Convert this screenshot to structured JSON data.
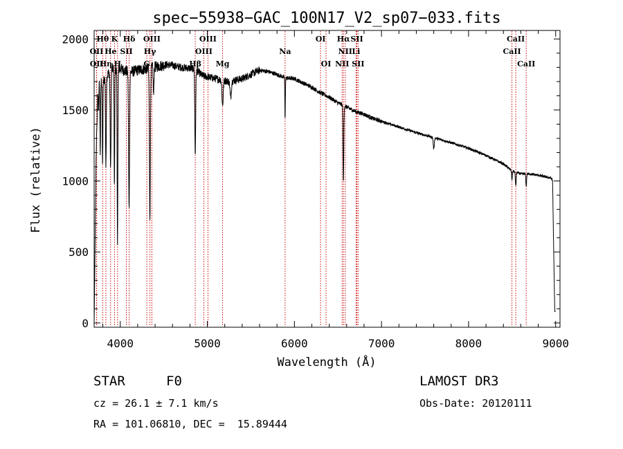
{
  "chart_data": {
    "type": "line",
    "title": "spec−55938−GAC_100N17_V2_sp07−033.fits",
    "xlabel": "Wavelength (Å)",
    "ylabel": "Flux (relative)",
    "xlim": [
      3700,
      9050
    ],
    "ylim": [
      -30,
      2060
    ],
    "xticks": [
      4000,
      5000,
      6000,
      7000,
      8000,
      9000
    ],
    "yticks": [
      0,
      500,
      1000,
      1500,
      2000
    ],
    "series": [
      {
        "name": "flux",
        "continuum": [
          [
            3700,
            0
          ],
          [
            3712,
            620
          ],
          [
            3722,
            1150
          ],
          [
            3745,
            1700
          ],
          [
            3800,
            1700
          ],
          [
            3900,
            1790
          ],
          [
            4000,
            1790
          ],
          [
            4100,
            1765
          ],
          [
            4200,
            1780
          ],
          [
            4300,
            1790
          ],
          [
            4450,
            1810
          ],
          [
            4550,
            1820
          ],
          [
            4700,
            1800
          ],
          [
            4850,
            1790
          ],
          [
            4950,
            1740
          ],
          [
            5100,
            1720
          ],
          [
            5250,
            1700
          ],
          [
            5400,
            1720
          ],
          [
            5600,
            1780
          ],
          [
            5700,
            1770
          ],
          [
            5800,
            1750
          ],
          [
            5900,
            1725
          ],
          [
            6000,
            1720
          ],
          [
            6100,
            1690
          ],
          [
            6200,
            1660
          ],
          [
            6300,
            1620
          ],
          [
            6400,
            1590
          ],
          [
            6500,
            1550
          ],
          [
            6600,
            1520
          ],
          [
            6700,
            1490
          ],
          [
            6800,
            1470
          ],
          [
            6900,
            1440
          ],
          [
            7000,
            1420
          ],
          [
            7200,
            1380
          ],
          [
            7400,
            1340
          ],
          [
            7600,
            1305
          ],
          [
            7800,
            1270
          ],
          [
            8000,
            1230
          ],
          [
            8200,
            1180
          ],
          [
            8400,
            1120
          ],
          [
            8500,
            1070
          ],
          [
            8600,
            1050
          ],
          [
            8700,
            1050
          ],
          [
            8800,
            1040
          ],
          [
            8950,
            1020
          ],
          [
            8965,
            1000
          ],
          [
            8975,
            600
          ],
          [
            8990,
            80
          ],
          [
            9000,
            80
          ]
        ],
        "absorption": [
          [
            3750,
            200,
            6
          ],
          [
            3770,
            500,
            5
          ],
          [
            3797,
            600,
            5
          ],
          [
            3835,
            650,
            6
          ],
          [
            3889,
            700,
            7
          ],
          [
            3933,
            820,
            5
          ],
          [
            3968,
            1200,
            6
          ],
          [
            4101,
            950,
            8
          ],
          [
            4340,
            1050,
            8
          ],
          [
            4383,
            200,
            6
          ],
          [
            4861,
            600,
            7
          ],
          [
            5175,
            180,
            10
          ],
          [
            5268,
            120,
            10
          ],
          [
            5893,
            300,
            4
          ],
          [
            6563,
            550,
            6
          ],
          [
            7600,
            80,
            8
          ],
          [
            8498,
            60,
            6
          ],
          [
            8542,
            100,
            6
          ],
          [
            8662,
            90,
            6
          ]
        ]
      }
    ],
    "line_markers": [
      {
        "label": "Hθ",
        "wavelength": 3798,
        "row": 1
      },
      {
        "label": "OII",
        "wavelength": 3727,
        "row": 2
      },
      {
        "label": "OII",
        "wavelength": 3729,
        "row": 3
      },
      {
        "label": "Hη",
        "wavelength": 3835,
        "row": 3
      },
      {
        "label": "K",
        "wavelength": 3934,
        "row": 1
      },
      {
        "label": "He",
        "wavelength": 3889,
        "row": 2
      },
      {
        "label": "H",
        "wavelength": 3969,
        "row": 3
      },
      {
        "label": "Hδ",
        "wavelength": 4102,
        "row": 1
      },
      {
        "label": "SII",
        "wavelength": 4070,
        "row": 2
      },
      {
        "label": "OIII",
        "wavelength": 4363,
        "row": 1
      },
      {
        "label": "Hγ",
        "wavelength": 4341,
        "row": 2
      },
      {
        "label": "G",
        "wavelength": 4305,
        "row": 3
      },
      {
        "label": "OIII",
        "wavelength": 5007,
        "row": 1
      },
      {
        "label": "OIII",
        "wavelength": 4959,
        "row": 2
      },
      {
        "label": "Hβ",
        "wavelength": 4861,
        "row": 3
      },
      {
        "label": "Mg",
        "wavelength": 5175,
        "row": 3
      },
      {
        "label": "Na",
        "wavelength": 5893,
        "row": 2
      },
      {
        "label": "OI",
        "wavelength": 6300,
        "row": 1
      },
      {
        "label": "OI",
        "wavelength": 6363,
        "row": 3
      },
      {
        "label": "Hα",
        "wavelength": 6563,
        "row": 1
      },
      {
        "label": "SII",
        "wavelength": 6717,
        "row": 1
      },
      {
        "label": "NII",
        "wavelength": 6584,
        "row": 2
      },
      {
        "label": "Li",
        "wavelength": 6708,
        "row": 2
      },
      {
        "label": "NII",
        "wavelength": 6548,
        "row": 3
      },
      {
        "label": "SII",
        "wavelength": 6731,
        "row": 3
      },
      {
        "label": "CaII",
        "wavelength": 8542,
        "row": 1
      },
      {
        "label": "CaII",
        "wavelength": 8498,
        "row": 2
      },
      {
        "label": "CaII",
        "wavelength": 8662,
        "row": 3
      }
    ]
  },
  "info": {
    "object_class": "STAR",
    "subclass": "F0",
    "survey": "LAMOST DR3",
    "redshift": "cz = 26.1 ± 7.1 km/s",
    "obs_date": "Obs-Date: 20120111",
    "coords": "RA = 101.06810, DEC =  15.89444"
  },
  "colors": {
    "line": "#000000",
    "marker": "#cc0000",
    "background": "#ffffff"
  }
}
